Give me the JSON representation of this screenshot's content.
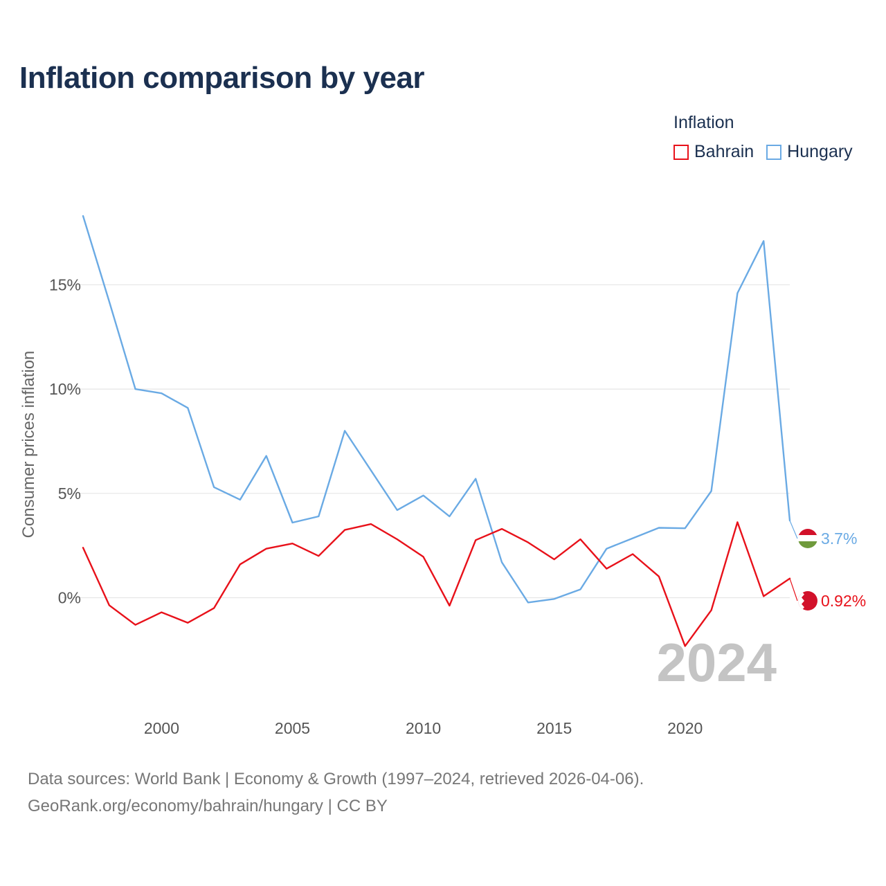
{
  "title": "Inflation comparison by year",
  "legend": {
    "title": "Inflation",
    "items": [
      {
        "label": "Bahrain",
        "color": "#e8111a"
      },
      {
        "label": "Hungary",
        "color": "#6aaae4"
      }
    ]
  },
  "ylabel": "Consumer prices inflation",
  "year_watermark": "2024",
  "footer": {
    "line1": "Data sources: World Bank | Economy & Growth (1997–2024, retrieved 2026-04-06).",
    "line2": "GeoRank.org/economy/bahrain/hungary | CC BY"
  },
  "chart_data": {
    "type": "line",
    "title": "Inflation comparison by year",
    "xlabel": "",
    "ylabel": "Consumer prices inflation",
    "x": [
      1997,
      1998,
      1999,
      2000,
      2001,
      2002,
      2003,
      2004,
      2005,
      2006,
      2007,
      2008,
      2009,
      2010,
      2011,
      2012,
      2013,
      2014,
      2015,
      2016,
      2017,
      2018,
      2019,
      2020,
      2021,
      2022,
      2023,
      2024
    ],
    "xlim": [
      1997,
      2024
    ],
    "ylim": [
      -3.6,
      18.3
    ],
    "x_ticks": [
      2000,
      2005,
      2010,
      2015,
      2020
    ],
    "x_tick_labels": [
      "2000",
      "2005",
      "2010",
      "2015",
      "2020"
    ],
    "y_ticks": [
      0,
      5,
      10,
      15
    ],
    "y_tick_labels": [
      "0%",
      "5%",
      "10%",
      "15%"
    ],
    "grid": true,
    "series": [
      {
        "name": "Bahrain",
        "color": "#e8111a",
        "end_label": "0.92%",
        "values": [
          2.4,
          -0.36,
          -1.3,
          -0.7,
          -1.2,
          -0.5,
          1.6,
          2.35,
          2.6,
          2.0,
          3.25,
          3.53,
          2.8,
          1.96,
          -0.38,
          2.76,
          3.3,
          2.65,
          1.84,
          2.8,
          1.39,
          2.09,
          1.02,
          -2.32,
          -0.6,
          3.62,
          0.07,
          0.92
        ]
      },
      {
        "name": "Hungary",
        "color": "#6aaae4",
        "end_label": "3.7%",
        "values": [
          18.3,
          14.2,
          10.0,
          9.8,
          9.1,
          5.3,
          4.7,
          6.8,
          3.6,
          3.9,
          8.0,
          6.1,
          4.2,
          4.9,
          3.9,
          5.7,
          1.7,
          -0.23,
          -0.06,
          0.4,
          2.35,
          2.85,
          3.35,
          3.33,
          5.11,
          14.6,
          17.1,
          3.7
        ]
      }
    ]
  }
}
